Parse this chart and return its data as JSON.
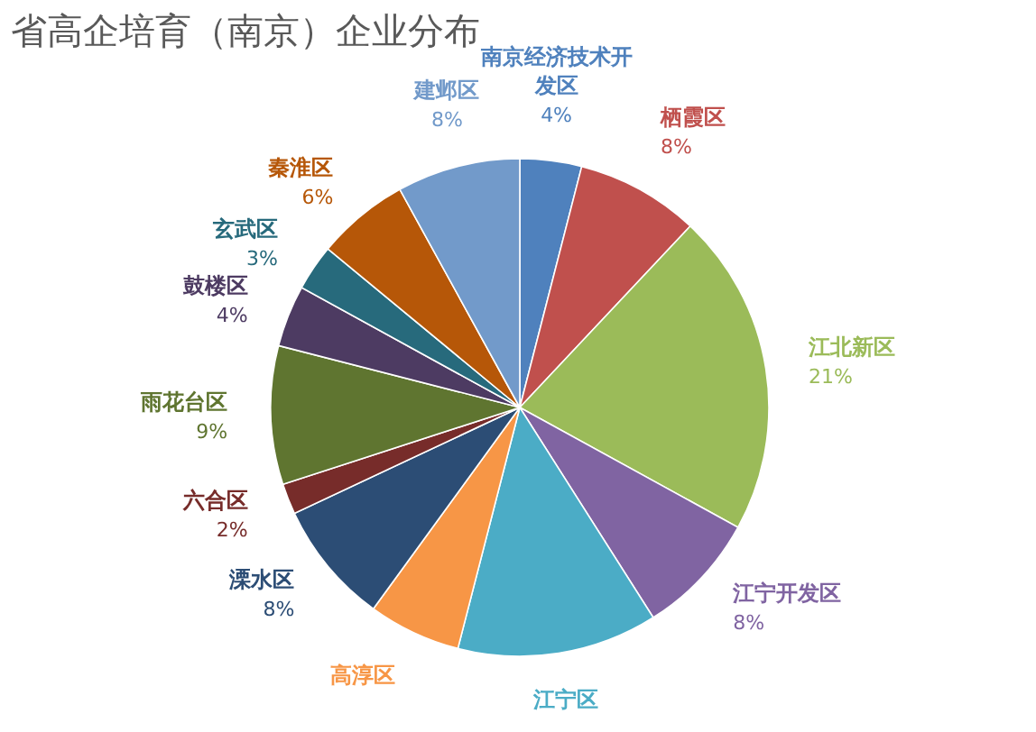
{
  "chart_data": {
    "type": "pie",
    "title": "省高企培育（南京）企业分布",
    "categories": [
      "南京经济技术开发区",
      "栖霞区",
      "江北新区",
      "江宁开发区",
      "江宁区",
      "高淳区",
      "溧水区",
      "六合区",
      "雨花台区",
      "鼓楼区",
      "玄武区",
      "秦淮区",
      "建邺区"
    ],
    "values": [
      4,
      8,
      21,
      8,
      13,
      6,
      8,
      2,
      9,
      4,
      3,
      6,
      8
    ],
    "value_labels": [
      "4%",
      "8%",
      "21%",
      "8%",
      null,
      null,
      "8%",
      "2%",
      "9%",
      "4%",
      "3%",
      "6%",
      "8%"
    ],
    "colors": [
      "#4f81bd",
      "#c0504d",
      "#9bbb59",
      "#8064a2",
      "#4bacc6",
      "#f79646",
      "#2c4d75",
      "#772c2a",
      "#5f7530",
      "#4d3b62",
      "#276a7c",
      "#b65708",
      "#729aca"
    ]
  }
}
